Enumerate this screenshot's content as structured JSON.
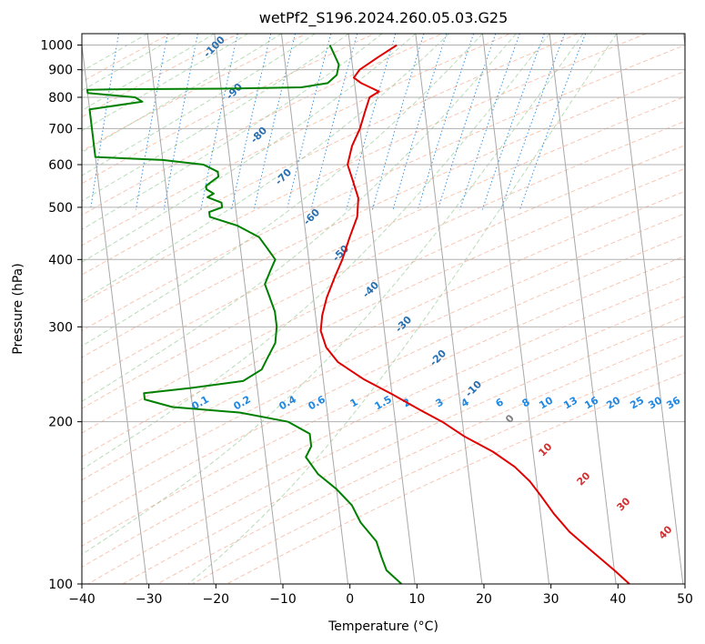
{
  "chart_data": {
    "type": "skew-t",
    "title": "wetPf2_S196.2024.260.05.03.G25",
    "xlabel": "Temperature (°C)",
    "ylabel": "Pressure (hPa)",
    "xlim": [
      -40,
      50
    ],
    "ylim": [
      1050,
      100
    ],
    "y_scale": "log",
    "grid": true,
    "x_ticks": [
      "−40",
      "−30",
      "−20",
      "−10",
      "0",
      "10",
      "20",
      "30",
      "40",
      "50"
    ],
    "x_tick_values": [
      -40,
      -30,
      -20,
      -10,
      0,
      10,
      20,
      30,
      40,
      50
    ],
    "y_ticks": [
      "100",
      "200",
      "300",
      "400",
      "500",
      "600",
      "700",
      "800",
      "900",
      "1000"
    ],
    "y_tick_values": [
      100,
      200,
      300,
      400,
      500,
      600,
      700,
      800,
      900,
      1000
    ],
    "isotherm_labels": [
      "-100",
      "-90",
      "-80",
      "-70",
      "-60",
      "-50",
      "-40",
      "-30",
      "-20",
      "-10",
      "0",
      "10",
      "20",
      "30",
      "40"
    ],
    "isotherm_label_values": [
      -100,
      -90,
      -80,
      -70,
      -60,
      -50,
      -40,
      -30,
      -20,
      -10,
      0,
      10,
      20,
      30,
      40
    ],
    "mixing_ratio_labels": [
      "0.1",
      "0.2",
      "0.4",
      "0.6",
      "1",
      "1.5",
      "2",
      "3",
      "4",
      "6",
      "8",
      "10",
      "13",
      "16",
      "20",
      "25",
      "30",
      "36"
    ],
    "mixing_ratio_values": [
      0.1,
      0.2,
      0.4,
      0.6,
      1,
      1.5,
      2,
      3,
      4,
      6,
      8,
      10,
      13,
      16,
      20,
      25,
      30,
      36
    ],
    "series": [
      {
        "color": "#e00000",
        "points": [
          [
            7,
            1000
          ],
          [
            4,
            950
          ],
          [
            1,
            900
          ],
          [
            0,
            870
          ],
          [
            1,
            850
          ],
          [
            3.5,
            820
          ],
          [
            2,
            800
          ],
          [
            1,
            750
          ],
          [
            0,
            700
          ],
          [
            -1.5,
            650
          ],
          [
            -2.5,
            600
          ],
          [
            -2,
            560
          ],
          [
            -1.5,
            520
          ],
          [
            -2,
            480
          ],
          [
            -3.5,
            440
          ],
          [
            -5,
            400
          ],
          [
            -6.5,
            370
          ],
          [
            -8,
            340
          ],
          [
            -9,
            315
          ],
          [
            -9.5,
            295
          ],
          [
            -9,
            275
          ],
          [
            -7.5,
            258
          ],
          [
            -4,
            240
          ],
          [
            0,
            225
          ],
          [
            4,
            210
          ],
          [
            7,
            200
          ],
          [
            10,
            188
          ],
          [
            14,
            176
          ],
          [
            17,
            165
          ],
          [
            19,
            155
          ],
          [
            20.5,
            145
          ],
          [
            22,
            135
          ],
          [
            24,
            125
          ],
          [
            27,
            115
          ],
          [
            30,
            106
          ],
          [
            32,
            100
          ]
        ]
      },
      {
        "color": "#008000",
        "points": [
          [
            -3,
            1000
          ],
          [
            -2.5,
            960
          ],
          [
            -2,
            920
          ],
          [
            -2.5,
            880
          ],
          [
            -4,
            850
          ],
          [
            -8,
            835
          ],
          [
            -20,
            830
          ],
          [
            -35,
            828
          ],
          [
            -40,
            826
          ],
          [
            -40,
            815
          ],
          [
            -33,
            800
          ],
          [
            -32,
            785
          ],
          [
            -40,
            760
          ],
          [
            -40,
            620
          ],
          [
            -30,
            612
          ],
          [
            -24,
            600
          ],
          [
            -22,
            582
          ],
          [
            -22,
            570
          ],
          [
            -24,
            548
          ],
          [
            -24,
            540
          ],
          [
            -23,
            530
          ],
          [
            -24,
            522
          ],
          [
            -22,
            510
          ],
          [
            -22,
            500
          ],
          [
            -24,
            490
          ],
          [
            -24,
            480
          ],
          [
            -20,
            462
          ],
          [
            -17,
            440
          ],
          [
            -16,
            420
          ],
          [
            -15,
            400
          ],
          [
            -16,
            380
          ],
          [
            -17,
            360
          ],
          [
            -16.5,
            340
          ],
          [
            -16,
            320
          ],
          [
            -16,
            300
          ],
          [
            -16.5,
            280
          ],
          [
            -18,
            262
          ],
          [
            -19,
            250
          ],
          [
            -22,
            238
          ],
          [
            -30,
            231
          ],
          [
            -37,
            226
          ],
          [
            -37,
            220
          ],
          [
            -33,
            213
          ],
          [
            -23,
            208
          ],
          [
            -16,
            200
          ],
          [
            -13,
            190
          ],
          [
            -13,
            180
          ],
          [
            -14,
            172
          ],
          [
            -12.5,
            160
          ],
          [
            -10,
            150
          ],
          [
            -8,
            140
          ],
          [
            -7,
            130
          ],
          [
            -5,
            120
          ],
          [
            -4.5,
            112
          ],
          [
            -4,
            106
          ],
          [
            -2,
            100
          ]
        ]
      }
    ]
  }
}
